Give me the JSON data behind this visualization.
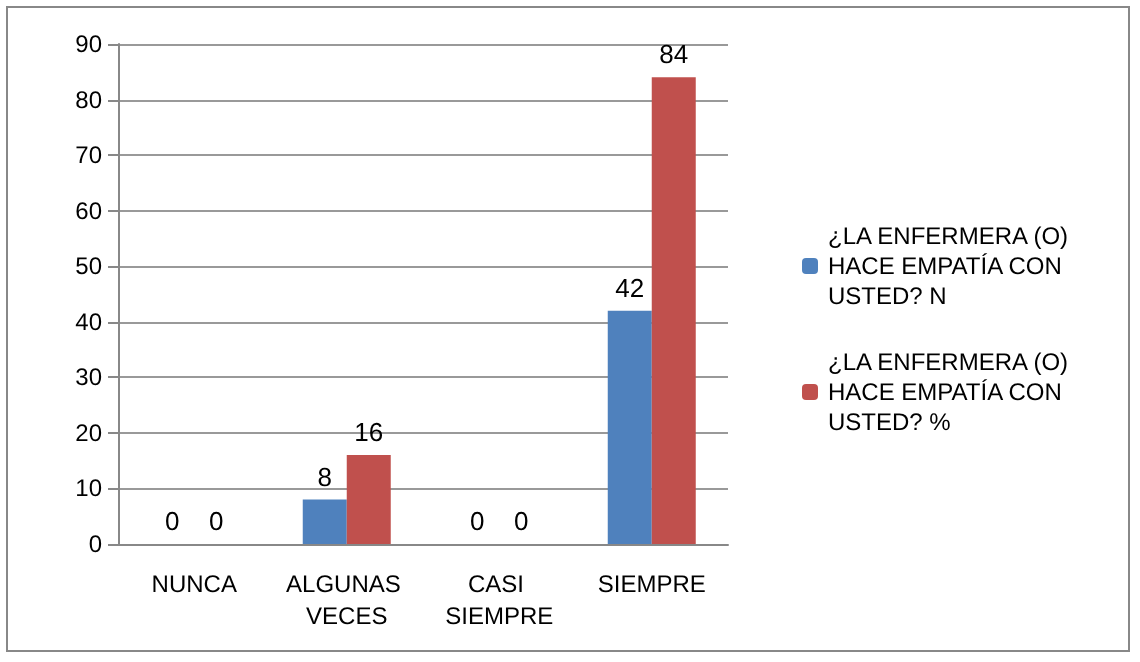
{
  "chart_data": {
    "type": "bar",
    "categories": [
      "NUNCA",
      "ALGUNAS VECES",
      "CASI SIEMPRE",
      "SIEMPRE"
    ],
    "series": [
      {
        "name": "¿LA ENFERMERA (O) HACE EMPATÍA CON USTED? N",
        "color": "#4f81bd",
        "values": [
          0,
          8,
          0,
          42
        ]
      },
      {
        "name": "¿LA ENFERMERA (O) HACE EMPATÍA CON USTED? %",
        "color": "#c0504d",
        "values": [
          0,
          16,
          0,
          84
        ]
      }
    ],
    "ylim": [
      0,
      90
    ],
    "yticks": [
      0,
      10,
      20,
      30,
      40,
      50,
      60,
      70,
      80,
      90
    ],
    "grid": "y",
    "legend": "right",
    "data_labels": true
  }
}
